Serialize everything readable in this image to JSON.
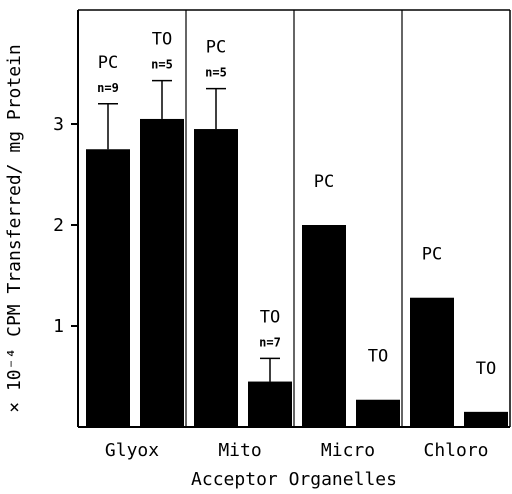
{
  "chart_data": {
    "type": "bar",
    "title": "",
    "xlabel": "Acceptor Organelles",
    "ylabel": "× 10⁻⁴ CPM Transferred/ mg Protein",
    "ylim": [
      0,
      3.9
    ],
    "yticks": [
      "1",
      "2",
      "3"
    ],
    "categories": [
      "Glyox",
      "Mito",
      "Micro",
      "Chloro"
    ],
    "series": [
      {
        "name": "PC",
        "values": [
          2.75,
          2.95,
          2.0,
          1.28
        ],
        "errors": [
          0.45,
          0.4,
          null,
          null
        ],
        "n_labels": [
          "n=9",
          "n=5",
          "",
          ""
        ]
      },
      {
        "name": "TO",
        "values": [
          3.05,
          0.45,
          0.27,
          0.15
        ],
        "errors": [
          0.38,
          0.23,
          null,
          null
        ],
        "n_labels": [
          "n=5",
          "n=7",
          "",
          ""
        ]
      }
    ]
  }
}
